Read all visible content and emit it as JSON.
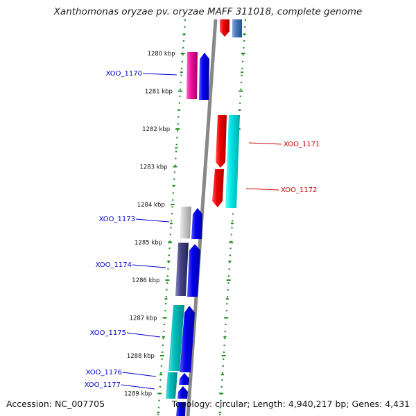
{
  "title": "Xanthomonas oryzae pv. oryzae MAFF 311018, complete genome",
  "footer": {
    "accession": "Accession: NC_007705",
    "topology": "Topology: circular; Length: 4,940,217 bp; Genes: 4,431"
  },
  "scale": {
    "labels": [
      "1280 kbp",
      "1281 kbp",
      "1282 kbp",
      "1283 kbp",
      "1284 kbp",
      "1285 kbp",
      "1286 kbp",
      "1287 kbp",
      "1288 kbp",
      "1289 kbp"
    ]
  },
  "genes": {
    "left": [
      {
        "name": "XOO_1170",
        "color": "#0000cc"
      },
      {
        "name": "XOO_1173",
        "color": "#0000cc"
      },
      {
        "name": "XOO_1174",
        "color": "#0000cc"
      },
      {
        "name": "XOO_1175",
        "color": "#0000cc"
      },
      {
        "name": "XOO_1176",
        "color": "#0000cc"
      },
      {
        "name": "XOO_1177",
        "color": "#0000cc"
      }
    ],
    "right": [
      {
        "name": "XOO_1171",
        "color": "#cc0000"
      },
      {
        "name": "XOO_1172",
        "color": "#cc0000"
      }
    ]
  },
  "colors": {
    "genome_line": "#888888",
    "dotted_track": "#228b22",
    "tick": "#228b22",
    "forward_strand": "#0000ee",
    "reverse_strand": "#ee0000"
  }
}
